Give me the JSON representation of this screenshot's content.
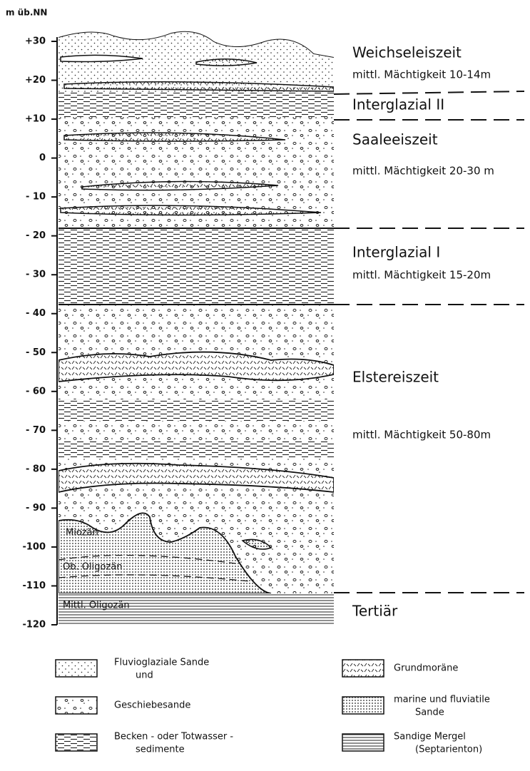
{
  "axis": {
    "title": "m üb.NN",
    "ticks": [
      {
        "value": 30,
        "label": "+30"
      },
      {
        "value": 20,
        "label": "+20"
      },
      {
        "value": 10,
        "label": "+10"
      },
      0,
      {
        "value": -10,
        "label": "- 10"
      },
      {
        "value": -20,
        "label": "- 20"
      },
      {
        "value": -30,
        "label": "- 30"
      },
      {
        "value": -40,
        "label": "- 40"
      },
      {
        "value": -50,
        "label": "- 50"
      },
      {
        "value": -60,
        "label": "- 60"
      },
      {
        "value": -70,
        "label": "- 70"
      },
      {
        "value": -80,
        "label": "- 80"
      },
      {
        "value": -90,
        "label": "- 90"
      },
      {
        "value": -100,
        "label": "-100"
      },
      {
        "value": -110,
        "label": "-110"
      },
      {
        "value": -120,
        "label": "-120"
      }
    ]
  },
  "units": [
    {
      "name": "Weichseleiszeit",
      "thickness": "mittl. Mächtigkeit 10-14m"
    },
    {
      "name": "Interglazial II"
    },
    {
      "name": "Saaleeiszeit",
      "thickness": "mittl. Mächtigkeit 20-30 m"
    },
    {
      "name": "Interglazial I",
      "thickness": "mittl. Mächtigkeit 15-20m"
    },
    {
      "name": "Elstereiszeit",
      "thickness": "mittl. Mächtigkeit 50-80m"
    },
    {
      "name": "Tertiär"
    }
  ],
  "inner_labels": [
    "Miozän",
    "Ob. Oligozän",
    "Mittl. Oligozän"
  ],
  "legend": [
    {
      "lines": [
        "Fluvioglaziale Sande",
        "und"
      ]
    },
    {
      "lines": [
        "Geschiebesande"
      ]
    },
    {
      "lines": [
        "Becken - oder Totwasser -",
        "sedimente"
      ]
    },
    {
      "lines": [
        "Grundmoräne"
      ]
    },
    {
      "lines": [
        "marine und fluviatile",
        "Sande"
      ]
    },
    {
      "lines": [
        "Sandige Mergel",
        "(Septarienton)"
      ]
    }
  ]
}
